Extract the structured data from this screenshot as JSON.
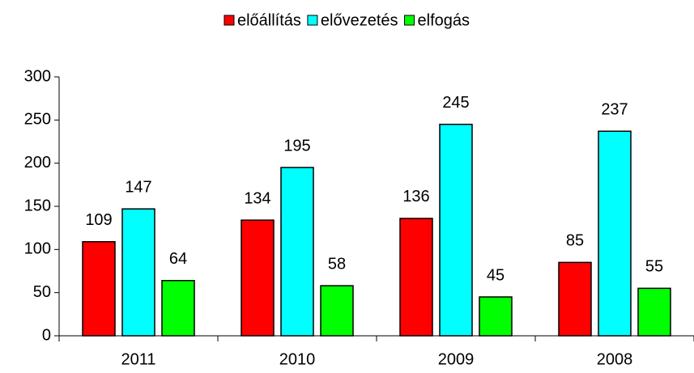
{
  "chart_data": {
    "type": "bar",
    "categories": [
      "2011",
      "2010",
      "2009",
      "2008"
    ],
    "series": [
      {
        "name": "előállítás",
        "color": "#ff0000",
        "values": [
          109,
          134,
          136,
          85
        ]
      },
      {
        "name": "elővezetés",
        "color": "#00ffff",
        "values": [
          147,
          195,
          245,
          237
        ]
      },
      {
        "name": "elfogás",
        "color": "#00ff00",
        "values": [
          64,
          58,
          45,
          55
        ]
      }
    ],
    "ylim": [
      0,
      300
    ],
    "yticks": [
      0,
      50,
      100,
      150,
      200,
      250,
      300
    ],
    "legend": "top",
    "grid": false
  }
}
